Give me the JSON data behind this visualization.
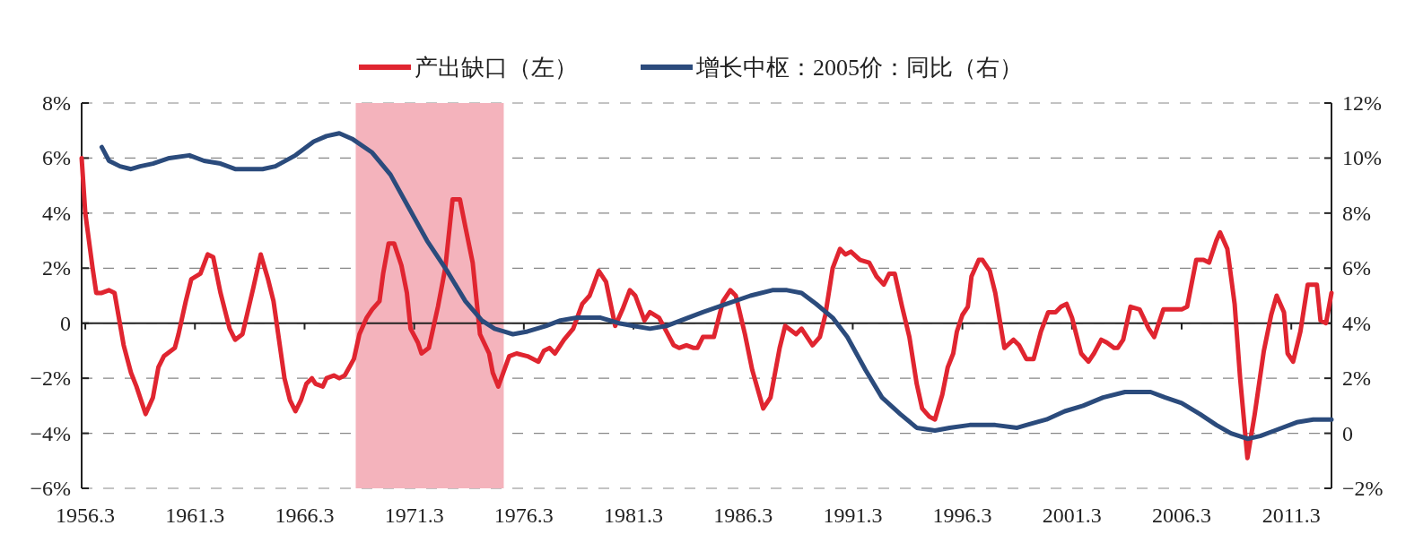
{
  "chart_data": {
    "type": "line",
    "legend": "top",
    "grid": "y",
    "line_style": "solid",
    "marker": "none",
    "xlim": [
      "1956-01",
      "2013-01"
    ],
    "xticks": [
      {
        "value": "1956-03",
        "label": "1956.3"
      },
      {
        "value": "1961-03",
        "label": "1961.3"
      },
      {
        "value": "1966-03",
        "label": "1966.3"
      },
      {
        "value": "1971-03",
        "label": "1971.3"
      },
      {
        "value": "1976-03",
        "label": "1976.3"
      },
      {
        "value": "1981-03",
        "label": "1981.3"
      },
      {
        "value": "1986-03",
        "label": "1986.3"
      },
      {
        "value": "1991-03",
        "label": "1991.3"
      },
      {
        "value": "1996-03",
        "label": "1996.3"
      },
      {
        "value": "2001-03",
        "label": "2001.3"
      },
      {
        "value": "2006-03",
        "label": "2006.3"
      },
      {
        "value": "2011-03",
        "label": "2011.3"
      }
    ],
    "ylim": [
      -6,
      8
    ],
    "yticks": [
      {
        "value": -6,
        "label": "−6%"
      },
      {
        "value": -4,
        "label": "−4%"
      },
      {
        "value": -2,
        "label": "−2%"
      },
      0,
      {
        "value": 2,
        "label": "2%"
      },
      {
        "value": 4,
        "label": "4%"
      },
      {
        "value": 6,
        "label": "6%"
      },
      {
        "value": 8,
        "label": "8%"
      }
    ],
    "y2lim": [
      -2,
      12
    ],
    "y2ticks": [
      {
        "value": -2,
        "label": "−2%"
      },
      0,
      {
        "value": 2,
        "label": "2%"
      },
      {
        "value": 4,
        "label": "4%"
      },
      {
        "value": 6,
        "label": "6%"
      },
      {
        "value": 8,
        "label": "8%"
      },
      {
        "value": 10,
        "label": "10%"
      },
      {
        "value": 12,
        "label": "12%"
      }
    ],
    "bands": [
      {
        "axis": "x",
        "from": "1968-07",
        "to": "1975-04",
        "color": "#f4b3bc"
      }
    ],
    "series": [
      {
        "name": "产出缺口（左）",
        "color": "#e02530",
        "x": [
          "1956-01",
          "1956-03",
          "1956-07",
          "1956-09",
          "1956-12",
          "1957-04",
          "1957-07",
          "1957-12",
          "1958-04",
          "1958-07",
          "1958-12",
          "1959-04",
          "1959-07",
          "1959-10",
          "1960-04",
          "1960-06",
          "1960-10",
          "1961-01",
          "1961-06",
          "1961-10",
          "1962-01",
          "1962-05",
          "1962-10",
          "1963-01",
          "1963-05",
          "1963-11",
          "1964-03",
          "1964-07",
          "1964-10",
          "1965-01",
          "1965-04",
          "1965-07",
          "1965-10",
          "1966-01",
          "1966-04",
          "1966-07",
          "1966-09",
          "1967-01",
          "1967-03",
          "1967-07",
          "1967-10",
          "1968-01",
          "1968-06",
          "1968-09",
          "1969-01",
          "1969-04",
          "1969-08",
          "1969-10",
          "1970-01",
          "1970-04",
          "1970-08",
          "1970-11",
          "1971-01",
          "1971-05",
          "1971-07",
          "1971-11",
          "1972-02",
          "1972-04",
          "1972-08",
          "1972-12",
          "1973-04",
          "1973-07",
          "1973-11",
          "1974-01",
          "1974-03",
          "1974-08",
          "1974-10",
          "1975-01",
          "1975-07",
          "1975-11",
          "1976-05",
          "1976-11",
          "1977-02",
          "1977-05",
          "1977-08",
          "1978-01",
          "1978-06",
          "1978-11",
          "1979-03",
          "1979-08",
          "1979-12",
          "1980-05",
          "1980-09",
          "1981-01",
          "1981-04",
          "1981-09",
          "1981-12",
          "1982-05",
          "1982-09",
          "1983-01",
          "1983-04",
          "1983-08",
          "1983-12",
          "1984-02",
          "1984-05",
          "1984-11",
          "1985-04",
          "1985-08",
          "1985-11",
          "1986-04",
          "1986-08",
          "1987-02",
          "1987-06",
          "1987-11",
          "1988-02",
          "1988-08",
          "1988-11",
          "1989-05",
          "1989-09",
          "1989-12",
          "1990-04",
          "1990-08",
          "1990-11",
          "1991-02",
          "1991-07",
          "1991-12",
          "1992-04",
          "1992-08",
          "1992-11",
          "1993-02",
          "1993-06",
          "1993-10",
          "1994-02",
          "1994-05",
          "1994-09",
          "1994-12",
          "1995-04",
          "1995-07",
          "1995-10",
          "1995-12",
          "1996-03",
          "1996-06",
          "1996-08",
          "1996-12",
          "1997-02",
          "1997-06",
          "1997-09",
          "1997-12",
          "1998-02",
          "1998-07",
          "1998-10",
          "1999-02",
          "1999-06",
          "1999-10",
          "2000-02",
          "2000-06",
          "2000-09",
          "2000-12",
          "2001-03",
          "2001-08",
          "2001-12",
          "2002-03",
          "2002-07",
          "2002-10",
          "2003-02",
          "2003-04",
          "2003-07",
          "2003-11",
          "2004-04",
          "2004-09",
          "2004-12",
          "2005-05",
          "2006-03",
          "2006-06",
          "2006-11",
          "2007-03",
          "2007-06",
          "2007-10",
          "2007-12",
          "2008-04",
          "2008-08",
          "2008-11",
          "2009-03",
          "2009-07",
          "2009-12",
          "2010-04",
          "2010-07",
          "2010-11",
          "2011-01",
          "2011-04",
          "2011-08",
          "2011-12",
          "2012-05",
          "2012-07",
          "2012-10",
          "2013-01"
        ],
        "values": [
          6.0,
          4.0,
          2.0,
          1.1,
          1.1,
          1.2,
          1.1,
          -0.8,
          -1.8,
          -2.3,
          -3.3,
          -2.7,
          -1.6,
          -1.2,
          -0.9,
          -0.4,
          0.8,
          1.6,
          1.8,
          2.5,
          2.4,
          1.1,
          -0.2,
          -0.6,
          -0.4,
          1.3,
          2.5,
          1.6,
          0.8,
          -0.6,
          -2.0,
          -2.8,
          -3.2,
          -2.8,
          -2.2,
          -2.0,
          -2.2,
          -2.3,
          -2.0,
          -1.9,
          -2.0,
          -1.9,
          -1.3,
          -0.4,
          0.2,
          0.5,
          0.8,
          1.8,
          2.9,
          2.9,
          2.1,
          1.1,
          -0.2,
          -0.7,
          -1.1,
          -0.9,
          0.0,
          0.6,
          2.0,
          4.5,
          4.5,
          3.5,
          2.2,
          0.9,
          -0.4,
          -1.1,
          -1.8,
          -2.3,
          -1.2,
          -1.1,
          -1.2,
          -1.4,
          -1.0,
          -0.9,
          -1.1,
          -0.6,
          -0.2,
          0.7,
          1.0,
          1.9,
          1.5,
          -0.1,
          0.5,
          1.2,
          1.0,
          0.1,
          0.4,
          0.2,
          -0.3,
          -0.8,
          -0.9,
          -0.8,
          -0.9,
          -0.9,
          -0.5,
          -0.5,
          0.8,
          1.2,
          1.0,
          -0.4,
          -1.7,
          -3.1,
          -2.7,
          -0.9,
          -0.1,
          -0.4,
          -0.2,
          -0.8,
          -0.5,
          0.3,
          2.0,
          2.7,
          2.5,
          2.6,
          2.3,
          2.2,
          1.7,
          1.4,
          1.8,
          1.8,
          0.6,
          -0.5,
          -2.2,
          -3.1,
          -3.4,
          -3.5,
          -2.6,
          -1.6,
          -1.1,
          -0.3,
          0.3,
          0.6,
          1.7,
          2.3,
          2.3,
          1.9,
          1.1,
          -0.1,
          -0.9,
          -0.6,
          -0.8,
          -1.3,
          -1.3,
          -0.3,
          0.4,
          0.4,
          0.6,
          0.7,
          0.2,
          -1.1,
          -1.4,
          -1.1,
          -0.6,
          -0.7,
          -0.9,
          -0.9,
          -0.6,
          0.6,
          0.5,
          -0.2,
          -0.5,
          0.5,
          0.5,
          0.6,
          2.3,
          2.3,
          2.2,
          3.0,
          3.3,
          2.7,
          0.7,
          -2.0,
          -4.9,
          -3.3,
          -1.0,
          0.3,
          1.0,
          0.4,
          -1.1,
          -1.4,
          -0.3,
          1.4,
          1.4,
          0.1,
          0.0,
          1.1
        ]
      },
      {
        "name": "增长中枢：2005价：同比（右）",
        "color": "#2b4b7c",
        "axis": "y2",
        "x": [
          "1956-12",
          "1957-04",
          "1957-10",
          "1958-04",
          "1958-09",
          "1959-04",
          "1960-01",
          "1960-12",
          "1961-08",
          "1962-05",
          "1963-01",
          "1964-04",
          "1964-11",
          "1965-10",
          "1966-08",
          "1967-03",
          "1967-10",
          "1968-05",
          "1969-04",
          "1970-02",
          "1970-12",
          "1971-10",
          "1972-09",
          "1973-07",
          "1974-04",
          "1974-11",
          "1975-04",
          "1975-09",
          "1976-05",
          "1977-03",
          "1977-11",
          "1978-08",
          "1979-09",
          "1980-07",
          "1981-03",
          "1981-12",
          "1982-09",
          "1983-05",
          "1984-05",
          "1985-06",
          "1986-07",
          "1987-07",
          "1988-03",
          "1988-11",
          "1989-07",
          "1990-04",
          "1990-12",
          "1991-10",
          "1992-07",
          "1993-05",
          "1994-02",
          "1994-12",
          "1995-08",
          "1996-07",
          "1997-06",
          "1997-09",
          "1998-09",
          "1999-02",
          "2000-01",
          "2000-11",
          "2001-09",
          "2002-08",
          "2003-08",
          "2004-10",
          "2005-06",
          "2006-03",
          "2007-01",
          "2007-10",
          "2008-06",
          "2009-03",
          "2009-10",
          "2010-06",
          "2011-06",
          "2012-03",
          "2013-01"
        ],
        "values": [
          10.4,
          9.9,
          9.7,
          9.6,
          9.7,
          9.8,
          10.0,
          10.1,
          9.9,
          9.8,
          9.6,
          9.6,
          9.7,
          10.1,
          10.6,
          10.8,
          10.9,
          10.7,
          10.2,
          9.4,
          8.2,
          7.0,
          5.9,
          4.8,
          4.1,
          3.8,
          3.7,
          3.6,
          3.7,
          3.9,
          4.1,
          4.2,
          4.2,
          4.0,
          3.9,
          3.8,
          3.9,
          4.1,
          4.4,
          4.7,
          5.0,
          5.2,
          5.2,
          5.1,
          4.7,
          4.2,
          3.5,
          2.3,
          1.3,
          0.7,
          0.2,
          0.1,
          0.2,
          0.3,
          0.3,
          0.3,
          0.2,
          0.3,
          0.5,
          0.8,
          1.0,
          1.3,
          1.5,
          1.5,
          1.3,
          1.1,
          0.7,
          0.3,
          0.0,
          -0.2,
          -0.1,
          0.1,
          0.4,
          0.5,
          0.5
        ]
      }
    ]
  }
}
